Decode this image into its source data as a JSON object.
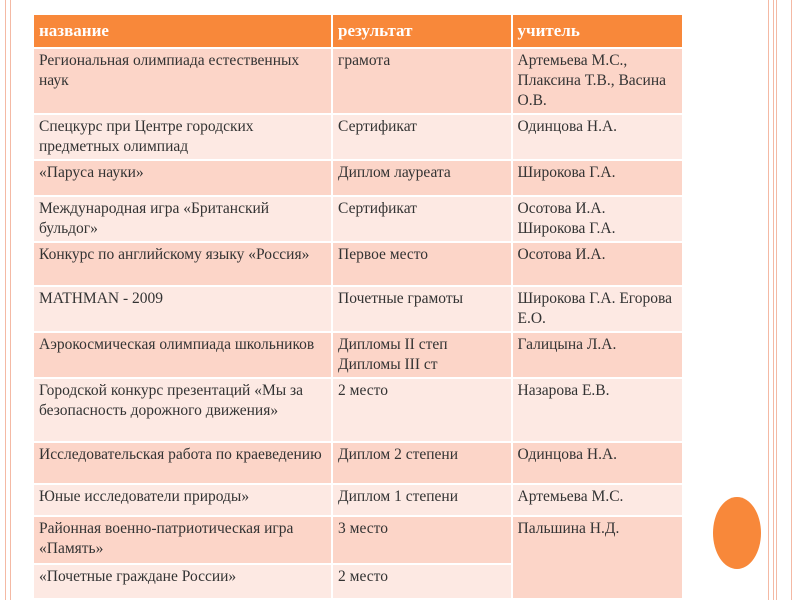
{
  "colors": {
    "header": "#f8883a",
    "row_dark": "#fcd5c8",
    "row_light": "#fde9e3"
  },
  "table": {
    "headers": [
      "название",
      "результат",
      "учитель"
    ],
    "rows": [
      [
        "Региональная олимпиада естественных наук",
        "грамота",
        "Артемьева М.С., Плаксина Т.В., Васина О.В."
      ],
      [
        "Спецкурс при Центре городских предметных олимпиад",
        "Сертификат",
        "Одинцова Н.А."
      ],
      [
        "«Паруса науки»",
        "Диплом лауреата",
        "Широкова Г.А."
      ],
      [
        "Международная игра «Британский бульдог»",
        "Сертификат",
        "Осотова И.А. Широкова Г.А."
      ],
      [
        "Конкурс по английскому языку «Россия»",
        "Первое место",
        "Осотова И.А."
      ],
      [
        "MATHMAN - 2009",
        "Почетные грамоты",
        "Широкова Г.А. Егорова Е.О."
      ],
      [
        "Аэрокосмическая олимпиада школьников",
        "Дипломы II степ Дипломы III ст",
        "Галицына Л.А."
      ],
      [
        "Городской конкурс презентаций «Мы за безопасность дорожного движения»",
        "2 место",
        "Назарова Е.В."
      ],
      [
        "Исследовательская работа по краеведению",
        "Диплом 2 степени",
        "Одинцова Н.А."
      ],
      [
        "Юные исследователи природы»",
        "Диплом 1 степени",
        "Артемьева М.С."
      ],
      [
        "Районная военно-патриотическая игра «Память»",
        "3 место",
        "Пальшина Н.Д."
      ],
      [
        "«Почетные граждане России»",
        "2 место",
        ""
      ]
    ]
  }
}
